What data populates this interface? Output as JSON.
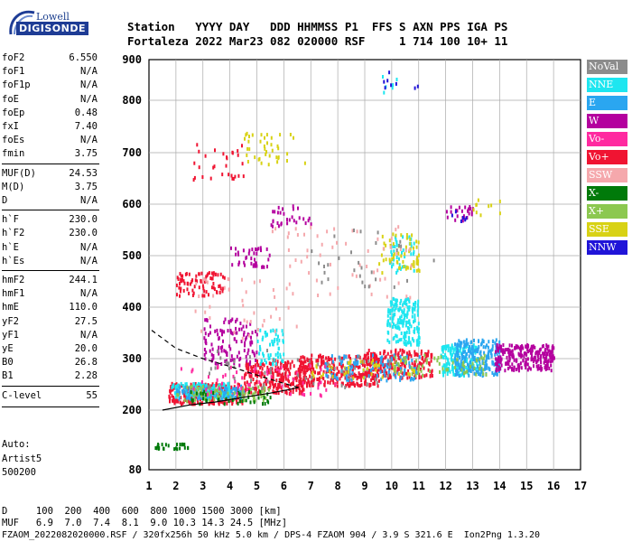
{
  "brand": {
    "line1": "Lowell",
    "line2": "DIGISONDE"
  },
  "header": {
    "line1": "Station   YYYY DAY   DDD HHMMSS P1  FFS S AXN PPS IGA PS",
    "line2": "Fortaleza 2022 Mar23 082 020000 RSF     1 714 100 10+ 11"
  },
  "params": [
    {
      "label": "foF2",
      "value": "6.550"
    },
    {
      "label": "foF1",
      "value": "N/A"
    },
    {
      "label": "foF1p",
      "value": "N/A"
    },
    {
      "label": "foE",
      "value": "N/A"
    },
    {
      "label": "foEp",
      "value": "0.48"
    },
    {
      "label": "fxI",
      "value": "7.40"
    },
    {
      "label": "foEs",
      "value": "N/A"
    },
    {
      "label": "fmin",
      "value": "3.75"
    },
    {
      "label": "MUF(D)",
      "value": "24.53"
    },
    {
      "label": "M(D)",
      "value": "3.75"
    },
    {
      "label": "D",
      "value": "N/A"
    },
    {
      "label": "h`F",
      "value": "230.0"
    },
    {
      "label": "h`F2",
      "value": "230.0"
    },
    {
      "label": "h`E",
      "value": "N/A"
    },
    {
      "label": "h`Es",
      "value": "N/A"
    },
    {
      "label": "hmF2",
      "value": "244.1"
    },
    {
      "label": "hmF1",
      "value": "N/A"
    },
    {
      "label": "hmE",
      "value": "110.0"
    },
    {
      "label": "yF2",
      "value": "27.5"
    },
    {
      "label": "yF1",
      "value": "N/A"
    },
    {
      "label": "yE",
      "value": "20.0"
    },
    {
      "label": "B0",
      "value": "26.8"
    },
    {
      "label": "B1",
      "value": "2.28"
    },
    {
      "label": "C-level",
      "value": "55"
    }
  ],
  "auto": {
    "line1": "Auto:",
    "line2": "Artist5",
    "line3": "500200"
  },
  "legend": [
    {
      "label": "NoVal",
      "color": "#8c8c8c"
    },
    {
      "label": "NNE",
      "color": "#1ee6f0"
    },
    {
      "label": "E",
      "color": "#2aa6f0"
    },
    {
      "label": "W",
      "color": "#b4009e"
    },
    {
      "label": "Vo-",
      "color": "#ff2aa0"
    },
    {
      "label": "Vo+",
      "color": "#f01432"
    },
    {
      "label": "SSW",
      "color": "#f5a8ac"
    },
    {
      "label": "X-",
      "color": "#007a0a"
    },
    {
      "label": "X+",
      "color": "#8cc850"
    },
    {
      "label": "SSE",
      "color": "#d8d214"
    },
    {
      "label": "NNW",
      "color": "#2014d8"
    }
  ],
  "footer": {
    "line1": "D     100  200  400  600  800 1000 1500 3000 [km]",
    "line2": "MUF   6.9  7.0  7.4  8.1  9.0 10.3 14.3 24.5 [MHz]",
    "line3": "FZAOM_2022082020000.RSF / 320fx256h 50 kHz 5.0 km / DPS-4 FZAOM 904 / 3.9 S 321.6 E  Ion2Png 1.3.20"
  },
  "chart_data": {
    "type": "scatter",
    "title": "",
    "xlabel": "",
    "ylabel": "",
    "xlim": [
      1,
      17
    ],
    "ylim": [
      80,
      900
    ],
    "x_ticks": [
      "1",
      "2",
      "3",
      "4",
      "5",
      "6",
      "7",
      "8",
      "9",
      "10",
      "11",
      "12",
      "13",
      "14",
      "15",
      "16",
      "17"
    ],
    "y_ticks": [
      "80",
      "200",
      "300",
      "400",
      "500",
      "600",
      "700",
      "800",
      "900"
    ],
    "y_tick_values": [
      80,
      200,
      300,
      400,
      500,
      600,
      700,
      800,
      900
    ],
    "grid": true,
    "legend_position": "right",
    "series": [
      {
        "name": "Vo+",
        "color": "#f01432",
        "clusters": [
          {
            "x": [
              1.7,
              4.5
            ],
            "y": [
              215,
              255
            ],
            "n": 260
          },
          {
            "x": [
              4.5,
              6.8
            ],
            "y": [
              235,
              300
            ],
            "n": 260
          },
          {
            "x": [
              6.5,
              9.5
            ],
            "y": [
              250,
              310
            ],
            "n": 300
          },
          {
            "x": [
              9.0,
              11.5
            ],
            "y": [
              265,
              320
            ],
            "n": 220
          },
          {
            "x": [
              2.0,
              3.8
            ],
            "y": [
              425,
              470
            ],
            "n": 80
          },
          {
            "x": [
              2.5,
              4.5
            ],
            "y": [
              650,
              720
            ],
            "n": 30
          }
        ]
      },
      {
        "name": "NNE",
        "color": "#1ee6f0",
        "clusters": [
          {
            "x": [
              1.8,
              4.0
            ],
            "y": [
              225,
              255
            ],
            "n": 160
          },
          {
            "x": [
              9.8,
              11.0
            ],
            "y": [
              330,
              420
            ],
            "n": 180
          },
          {
            "x": [
              11.8,
              13.2
            ],
            "y": [
              270,
              330
            ],
            "n": 160
          },
          {
            "x": [
              5.0,
              6.0
            ],
            "y": [
              290,
              360
            ],
            "n": 60
          },
          {
            "x": [
              9.9,
              10.8
            ],
            "y": [
              470,
              540
            ],
            "n": 40
          },
          {
            "x": [
              9.6,
              10.2
            ],
            "y": [
              820,
              880
            ],
            "n": 6
          }
        ]
      },
      {
        "name": "E",
        "color": "#2aa6f0",
        "clusters": [
          {
            "x": [
              12.3,
              14.0
            ],
            "y": [
              270,
              340
            ],
            "n": 220
          },
          {
            "x": [
              7.5,
              11.0
            ],
            "y": [
              260,
              310
            ],
            "n": 120
          },
          {
            "x": [
              2.0,
              4.5
            ],
            "y": [
              225,
              250
            ],
            "n": 100
          }
        ]
      },
      {
        "name": "W",
        "color": "#b4009e",
        "clusters": [
          {
            "x": [
              13.8,
              16.0
            ],
            "y": [
              280,
              330
            ],
            "n": 260
          },
          {
            "x": [
              3.0,
              5.0
            ],
            "y": [
              290,
              380
            ],
            "n": 120
          },
          {
            "x": [
              4.0,
              5.5
            ],
            "y": [
              480,
              520
            ],
            "n": 40
          },
          {
            "x": [
              12.0,
              13.0
            ],
            "y": [
              570,
              600
            ],
            "n": 25
          },
          {
            "x": [
              5.5,
              7.0
            ],
            "y": [
              560,
              600
            ],
            "n": 30
          }
        ]
      },
      {
        "name": "SSE",
        "color": "#d8d214",
        "clusters": [
          {
            "x": [
              9.5,
              11.0
            ],
            "y": [
              470,
              545
            ],
            "n": 60
          },
          {
            "x": [
              4.5,
              6.8
            ],
            "y": [
              680,
              740
            ],
            "n": 40
          },
          {
            "x": [
              13.0,
              14.0
            ],
            "y": [
              580,
              620
            ],
            "n": 10
          },
          {
            "x": [
              7.0,
              11.0
            ],
            "y": [
              265,
              300
            ],
            "n": 50
          }
        ]
      },
      {
        "name": "X+",
        "color": "#8cc850",
        "clusters": [
          {
            "x": [
              2.0,
              5.5
            ],
            "y": [
              220,
              250
            ],
            "n": 80
          },
          {
            "x": [
              10.0,
              13.5
            ],
            "y": [
              270,
              310
            ],
            "n": 60
          }
        ]
      },
      {
        "name": "X-",
        "color": "#007a0a",
        "clusters": [
          {
            "x": [
              1.2,
              2.5
            ],
            "y": [
              125,
              135
            ],
            "n": 25
          },
          {
            "x": [
              2.5,
              5.5
            ],
            "y": [
              215,
              240
            ],
            "n": 40
          }
        ]
      },
      {
        "name": "SSW",
        "color": "#f5a8ac",
        "clusters": [
          {
            "x": [
              5.5,
              11.0
            ],
            "y": [
              420,
              560
            ],
            "n": 60
          },
          {
            "x": [
              2.5,
              6.5
            ],
            "y": [
              340,
              460
            ],
            "n": 40
          }
        ]
      },
      {
        "name": "NNW",
        "color": "#2014d8",
        "clusters": [
          {
            "x": [
              9.5,
              11.0
            ],
            "y": [
              830,
              890
            ],
            "n": 8
          },
          {
            "x": [
              12.2,
              12.8
            ],
            "y": [
              570,
              590
            ],
            "n": 6
          }
        ]
      },
      {
        "name": "Vo-",
        "color": "#ff2aa0",
        "clusters": [
          {
            "x": [
              2.0,
              8.0
            ],
            "y": [
              230,
              290
            ],
            "n": 60
          }
        ]
      },
      {
        "name": "NoVal",
        "color": "#8c8c8c",
        "clusters": [
          {
            "x": [
              3.0,
              10.0
            ],
            "y": [
              240,
              320
            ],
            "n": 50
          },
          {
            "x": [
              7.0,
              12.0
            ],
            "y": [
              440,
              560
            ],
            "n": 30
          }
        ]
      }
    ],
    "profile_lines": [
      {
        "style": "solid",
        "x": [
          1.5,
          2.5,
          3.5,
          4.5,
          5.5,
          6.2,
          6.55
        ],
        "y": [
          200,
          210,
          216,
          225,
          233,
          240,
          244
        ]
      },
      {
        "style": "dashed",
        "x": [
          1.1,
          2.0,
          3.0,
          4.0,
          5.0,
          6.0,
          6.55
        ],
        "y": [
          355,
          320,
          300,
          285,
          268,
          252,
          244
        ]
      }
    ]
  }
}
